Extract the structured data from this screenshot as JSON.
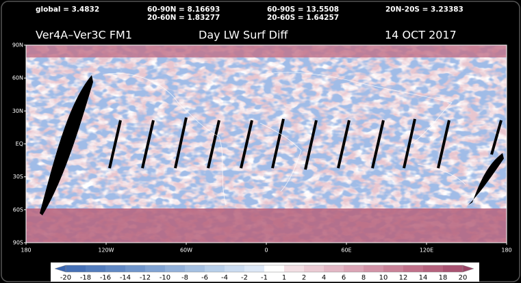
{
  "header": {
    "stats": [
      "global = 3.4832",
      "60-90N = 8.16693",
      "20-60N = 1.83277",
      "60-90S = 13.5508",
      "20-60S = 1.64257",
      "20N-20S = 3.23383"
    ],
    "title": "Ver4A–Ver3C FM1",
    "subtitle": "Day LW Surf  Diff",
    "date": "14 OCT 2017"
  },
  "map": {
    "lat_labels": [
      "90N",
      "60N",
      "30N",
      "EQ",
      "30S",
      "60S",
      "90S"
    ],
    "lon_labels": [
      "180",
      "120W",
      "60W",
      "0",
      "60E",
      "120E",
      "180"
    ]
  },
  "colorbar": {
    "labels": [
      "-20",
      "-18",
      "-16",
      "-14",
      "-12",
      "-10",
      "-8",
      "-6",
      "-4",
      "-2",
      "-1",
      "1",
      "2",
      "4",
      "6",
      "8",
      "10",
      "12",
      "14",
      "18",
      "20"
    ],
    "colors": [
      "#3a66b0",
      "#4570b6",
      "#527cbd",
      "#6088c4",
      "#6f95cb",
      "#80a3d3",
      "#92b1da",
      "#a5c0e2",
      "#b8cfea",
      "#cbdcf1",
      "#dde8f7",
      "#ffffff",
      "#f3dfe4",
      "#ebcbd4",
      "#e3b8c5",
      "#dba5b6",
      "#d293a7",
      "#c98298",
      "#c0718a",
      "#b5627d",
      "#a85271",
      "#9a4466"
    ]
  }
}
